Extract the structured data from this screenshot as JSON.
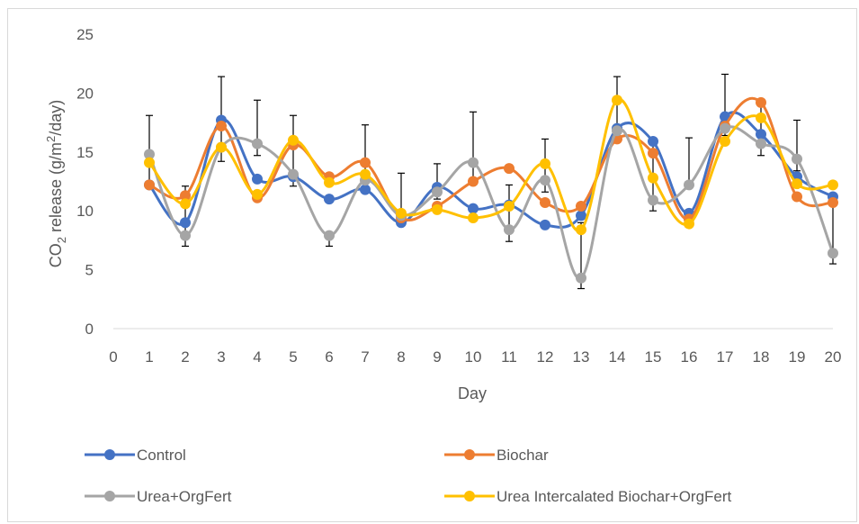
{
  "chart_data": {
    "type": "line",
    "title": "",
    "xlabel": "Day",
    "ylabel_parts": {
      "a": "CO",
      "b": "2",
      "c": " release (g/m",
      "d": "2",
      "e": "/day)"
    },
    "x": [
      1,
      2,
      3,
      4,
      5,
      6,
      7,
      8,
      9,
      10,
      11,
      12,
      13,
      14,
      15,
      16,
      17,
      18,
      19,
      20
    ],
    "xlim": [
      0,
      20
    ],
    "xticks": [
      "0",
      "1",
      "2",
      "3",
      "4",
      "5",
      "6",
      "7",
      "8",
      "9",
      "10",
      "11",
      "12",
      "13",
      "14",
      "15",
      "16",
      "17",
      "18",
      "19",
      "20"
    ],
    "ylim": [
      0,
      25
    ],
    "yticks": [
      "0",
      "5",
      "10",
      "15",
      "20",
      "25"
    ],
    "grid": false,
    "legend_position": "bottom",
    "series": [
      {
        "name": "Control",
        "color": "#4472c4",
        "values": [
          12.2,
          9.0,
          17.7,
          12.7,
          12.9,
          11.0,
          11.8,
          9.0,
          12.0,
          10.2,
          10.5,
          8.8,
          9.6,
          17.0,
          15.9,
          9.8,
          18.0,
          16.5,
          12.9,
          11.2
        ]
      },
      {
        "name": "Biochar",
        "color": "#ed7d31",
        "values": [
          12.2,
          11.3,
          17.2,
          11.1,
          15.6,
          12.9,
          14.1,
          9.4,
          10.4,
          12.5,
          13.6,
          10.7,
          10.4,
          16.1,
          14.9,
          9.3,
          17.2,
          19.2,
          11.2,
          10.7
        ]
      },
      {
        "name": "Urea+OrgFert",
        "color": "#a5a5a5",
        "values": [
          14.8,
          7.9,
          15.4,
          15.7,
          13.1,
          7.9,
          12.6,
          9.6,
          11.6,
          14.1,
          8.4,
          12.6,
          4.3,
          16.8,
          10.9,
          12.2,
          17.0,
          15.7,
          14.4,
          6.4
        ]
      },
      {
        "name": "Urea Intercalated Biochar+OrgFert",
        "color": "#ffc000",
        "values": [
          14.1,
          10.6,
          15.4,
          11.4,
          16.0,
          12.4,
          13.1,
          9.8,
          10.1,
          9.4,
          10.4,
          14.0,
          8.4,
          19.4,
          12.8,
          8.9,
          15.9,
          17.9,
          12.3,
          12.2
        ]
      }
    ],
    "error_bar_tops": [
      18.1,
      12.1,
      21.4,
      19.4,
      18.1,
      8.1,
      17.3,
      13.2,
      14.0,
      18.4,
      12.2,
      16.1,
      9.0,
      21.4,
      15.8,
      16.2,
      21.6,
      19.2,
      17.7,
      11.2
    ],
    "error_bar_bottoms": [
      12.2,
      7.0,
      14.2,
      14.7,
      12.1,
      7.0,
      11.8,
      9.0,
      11.0,
      12.8,
      7.4,
      11.6,
      3.4,
      16.2,
      10.0,
      12.2,
      16.4,
      14.7,
      13.4,
      5.5
    ],
    "error_bar_color": "#000000"
  }
}
